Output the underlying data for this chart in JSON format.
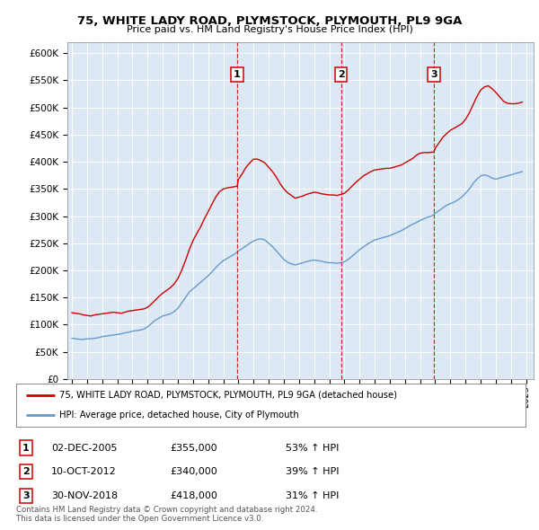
{
  "title": "75, WHITE LADY ROAD, PLYMSTOCK, PLYMOUTH, PL9 9GA",
  "subtitle": "Price paid vs. HM Land Registry's House Price Index (HPI)",
  "legend_line1": "75, WHITE LADY ROAD, PLYMSTOCK, PLYMOUTH, PL9 9GA (detached house)",
  "legend_line2": "HPI: Average price, detached house, City of Plymouth",
  "footer1": "Contains HM Land Registry data © Crown copyright and database right 2024.",
  "footer2": "This data is licensed under the Open Government Licence v3.0.",
  "sale_dates_num": [
    2005.917,
    2012.775,
    2018.917
  ],
  "sale_labels": [
    "1",
    "2",
    "3"
  ],
  "table_rows": [
    [
      "1",
      "02-DEC-2005",
      "£355,000",
      "53% ↑ HPI"
    ],
    [
      "2",
      "10-OCT-2012",
      "£340,000",
      "39% ↑ HPI"
    ],
    [
      "3",
      "30-NOV-2018",
      "£418,000",
      "31% ↑ HPI"
    ]
  ],
  "red_line_color": "#cc0000",
  "blue_line_color": "#6699cc",
  "vline_color": "#cc0000",
  "plot_bg": "#dce9f5",
  "ylim": [
    0,
    620000
  ],
  "xlim_start": 1994.7,
  "xlim_end": 2025.5,
  "red_x": [
    1995.0,
    1995.25,
    1995.5,
    1995.75,
    1996.0,
    1996.25,
    1996.5,
    1996.75,
    1997.0,
    1997.25,
    1997.5,
    1997.75,
    1998.0,
    1998.25,
    1998.5,
    1998.75,
    1999.0,
    1999.25,
    1999.5,
    1999.75,
    2000.0,
    2000.25,
    2000.5,
    2000.75,
    2001.0,
    2001.25,
    2001.5,
    2001.75,
    2002.0,
    2002.25,
    2002.5,
    2002.75,
    2003.0,
    2003.25,
    2003.5,
    2003.75,
    2004.0,
    2004.25,
    2004.5,
    2004.75,
    2005.0,
    2005.25,
    2005.5,
    2005.917,
    2006.0,
    2006.25,
    2006.5,
    2006.75,
    2007.0,
    2007.25,
    2007.5,
    2007.75,
    2008.0,
    2008.25,
    2008.5,
    2008.75,
    2009.0,
    2009.25,
    2009.5,
    2009.75,
    2010.0,
    2010.25,
    2010.5,
    2010.75,
    2011.0,
    2011.25,
    2011.5,
    2011.75,
    2012.0,
    2012.25,
    2012.5,
    2012.775,
    2013.0,
    2013.25,
    2013.5,
    2013.75,
    2014.0,
    2014.25,
    2014.5,
    2014.75,
    2015.0,
    2015.25,
    2015.5,
    2015.75,
    2016.0,
    2016.25,
    2016.5,
    2016.75,
    2017.0,
    2017.25,
    2017.5,
    2017.75,
    2018.0,
    2018.25,
    2018.5,
    2018.917,
    2019.0,
    2019.25,
    2019.5,
    2019.75,
    2020.0,
    2020.25,
    2020.5,
    2020.75,
    2021.0,
    2021.25,
    2021.5,
    2021.75,
    2022.0,
    2022.25,
    2022.5,
    2022.75,
    2023.0,
    2023.25,
    2023.5,
    2023.75,
    2024.0,
    2024.25,
    2024.5,
    2024.75
  ],
  "red_y": [
    122000,
    121000,
    120000,
    118000,
    117000,
    116000,
    118000,
    119000,
    120000,
    121000,
    122000,
    123000,
    122000,
    121000,
    123000,
    125000,
    126000,
    127000,
    128000,
    129000,
    132000,
    138000,
    145000,
    152000,
    158000,
    163000,
    168000,
    175000,
    185000,
    200000,
    218000,
    238000,
    255000,
    268000,
    280000,
    295000,
    308000,
    322000,
    335000,
    345000,
    350000,
    352000,
    353000,
    355000,
    368000,
    378000,
    390000,
    398000,
    405000,
    405000,
    402000,
    398000,
    390000,
    382000,
    372000,
    360000,
    350000,
    343000,
    338000,
    333000,
    335000,
    337000,
    340000,
    342000,
    344000,
    343000,
    341000,
    340000,
    339000,
    339000,
    338000,
    340000,
    342000,
    348000,
    355000,
    362000,
    368000,
    374000,
    378000,
    382000,
    385000,
    386000,
    387000,
    388000,
    388000,
    390000,
    392000,
    394000,
    398000,
    402000,
    406000,
    412000,
    416000,
    417000,
    417000,
    418000,
    425000,
    435000,
    445000,
    452000,
    458000,
    462000,
    466000,
    470000,
    478000,
    490000,
    505000,
    520000,
    532000,
    538000,
    540000,
    535000,
    528000,
    520000,
    512000,
    508000,
    507000,
    507000,
    508000,
    510000
  ],
  "blue_x": [
    1995.0,
    1995.25,
    1995.5,
    1995.75,
    1996.0,
    1996.25,
    1996.5,
    1996.75,
    1997.0,
    1997.25,
    1997.5,
    1997.75,
    1998.0,
    1998.25,
    1998.5,
    1998.75,
    1999.0,
    1999.25,
    1999.5,
    1999.75,
    2000.0,
    2000.25,
    2000.5,
    2000.75,
    2001.0,
    2001.25,
    2001.5,
    2001.75,
    2002.0,
    2002.25,
    2002.5,
    2002.75,
    2003.0,
    2003.25,
    2003.5,
    2003.75,
    2004.0,
    2004.25,
    2004.5,
    2004.75,
    2005.0,
    2005.25,
    2005.5,
    2005.75,
    2006.0,
    2006.25,
    2006.5,
    2006.75,
    2007.0,
    2007.25,
    2007.5,
    2007.75,
    2008.0,
    2008.25,
    2008.5,
    2008.75,
    2009.0,
    2009.25,
    2009.5,
    2009.75,
    2010.0,
    2010.25,
    2010.5,
    2010.75,
    2011.0,
    2011.25,
    2011.5,
    2011.75,
    2012.0,
    2012.25,
    2012.5,
    2012.75,
    2013.0,
    2013.25,
    2013.5,
    2013.75,
    2014.0,
    2014.25,
    2014.5,
    2014.75,
    2015.0,
    2015.25,
    2015.5,
    2015.75,
    2016.0,
    2016.25,
    2016.5,
    2016.75,
    2017.0,
    2017.25,
    2017.5,
    2017.75,
    2018.0,
    2018.25,
    2018.5,
    2018.75,
    2019.0,
    2019.25,
    2019.5,
    2019.75,
    2020.0,
    2020.25,
    2020.5,
    2020.75,
    2021.0,
    2021.25,
    2021.5,
    2021.75,
    2022.0,
    2022.25,
    2022.5,
    2022.75,
    2023.0,
    2023.25,
    2023.5,
    2023.75,
    2024.0,
    2024.25,
    2024.5,
    2024.75
  ],
  "blue_y": [
    75000,
    74000,
    73000,
    73000,
    74000,
    74000,
    75000,
    76000,
    78000,
    79000,
    80000,
    81000,
    82000,
    83000,
    85000,
    86000,
    88000,
    89000,
    90000,
    92000,
    96000,
    102000,
    108000,
    112000,
    116000,
    118000,
    120000,
    124000,
    130000,
    140000,
    150000,
    160000,
    166000,
    172000,
    178000,
    184000,
    190000,
    197000,
    205000,
    212000,
    218000,
    222000,
    226000,
    230000,
    236000,
    240000,
    245000,
    250000,
    254000,
    257000,
    258000,
    256000,
    250000,
    244000,
    236000,
    228000,
    220000,
    215000,
    212000,
    210000,
    212000,
    214000,
    216000,
    218000,
    219000,
    218000,
    217000,
    215000,
    214000,
    214000,
    213000,
    214000,
    216000,
    220000,
    226000,
    232000,
    238000,
    243000,
    248000,
    252000,
    256000,
    258000,
    260000,
    262000,
    264000,
    267000,
    270000,
    273000,
    277000,
    281000,
    285000,
    288000,
    292000,
    295000,
    298000,
    300000,
    305000,
    310000,
    315000,
    320000,
    323000,
    326000,
    330000,
    335000,
    342000,
    350000,
    360000,
    368000,
    374000,
    376000,
    374000,
    370000,
    368000,
    370000,
    372000,
    374000,
    376000,
    378000,
    380000,
    382000
  ]
}
